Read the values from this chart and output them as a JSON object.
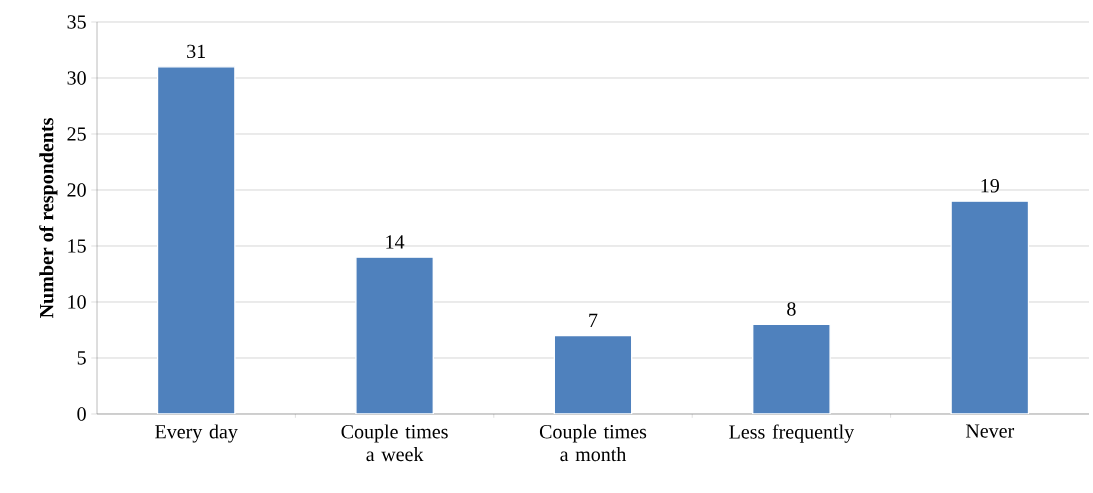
{
  "chart_data": {
    "type": "bar",
    "ylabel": "Number of respondents",
    "categories": [
      "Every day",
      "Couple times a week",
      "Couple times a month",
      "Less frequently",
      "Never"
    ],
    "values": [
      31,
      14,
      7,
      8,
      19
    ],
    "color": "#4f81bd",
    "ylim": [
      0,
      35
    ],
    "yticks": [
      0,
      5,
      10,
      15,
      20,
      25,
      30,
      35
    ],
    "grid": "y",
    "data_labels": true
  }
}
